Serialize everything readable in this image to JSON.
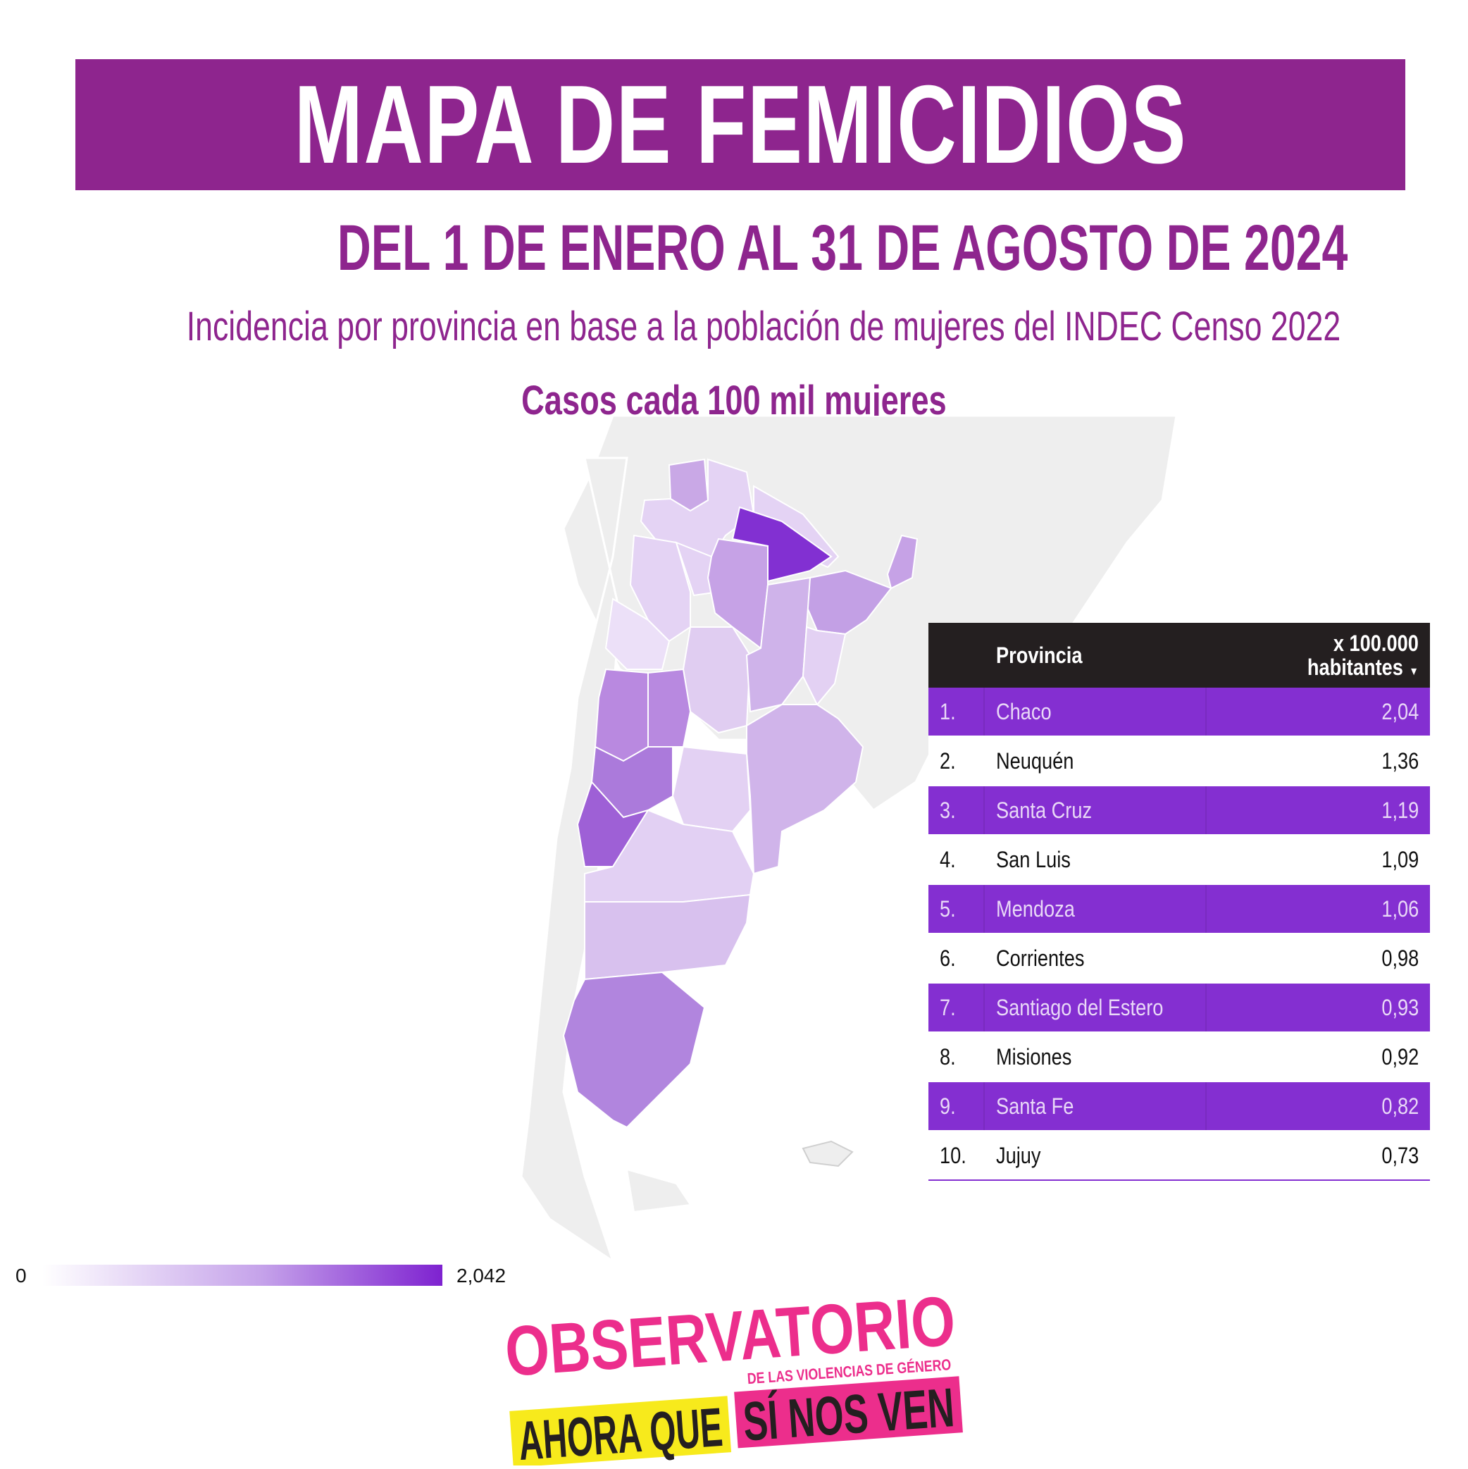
{
  "header": {
    "title": "MAPA DE FEMICIDIOS",
    "date_range": "DEL 1 DE ENERO AL 31 DE AGOSTO DE 2024",
    "description": "Incidencia por provincia en base a la población de mujeres del INDEC Censo 2022",
    "map_heading": "Casos cada 100 mil mujeres"
  },
  "ranking": {
    "col_province": "Provincia",
    "col_value_line1": "x 100.000",
    "col_value_line2": "habitantes",
    "sort_icon": "sort-descending-icon",
    "rows": [
      {
        "rank": "1.",
        "name": "Chaco",
        "value": "2,04"
      },
      {
        "rank": "2.",
        "name": "Neuquén",
        "value": "1,36"
      },
      {
        "rank": "3.",
        "name": "Santa Cruz",
        "value": "1,19"
      },
      {
        "rank": "4.",
        "name": "San Luis",
        "value": "1,09"
      },
      {
        "rank": "5.",
        "name": "Mendoza",
        "value": "1,06"
      },
      {
        "rank": "6.",
        "name": "Corrientes",
        "value": "0,98"
      },
      {
        "rank": "7.",
        "name": "Santiago del Estero",
        "value": "0,93"
      },
      {
        "rank": "8.",
        "name": "Misiones",
        "value": "0,92"
      },
      {
        "rank": "9.",
        "name": "Santa Fe",
        "value": "0,82"
      },
      {
        "rank": "10.",
        "name": "Jujuy",
        "value": "0,73"
      }
    ]
  },
  "legend": {
    "min": "0",
    "max": "2,042",
    "color_low": "#ffffff",
    "color_high": "#7e22d0"
  },
  "colors": {
    "brand_purple": "#8e258e",
    "highlight_row": "#842fd1",
    "header_dark": "#241f20",
    "logo_pink": "#ec2e8c",
    "logo_yellow": "#f7ea1c"
  },
  "logo": {
    "line1": "OBSERVATORIO",
    "line2": "DE LAS VIOLENCIAS DE GÉNERO",
    "line3a": "AHORA QUE",
    "line3b": "SÍ NOS VEN"
  }
}
